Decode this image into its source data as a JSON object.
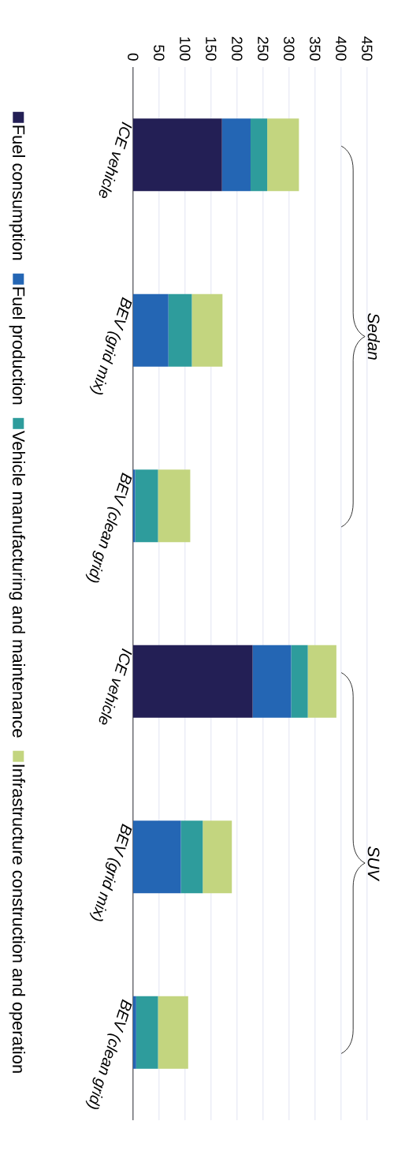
{
  "chart_data": {
    "type": "bar",
    "stacked": true,
    "orientation": "horizontal",
    "categories": [
      "ICE vehicle",
      "BEV (grid mix)",
      "BEV (clean grid)",
      "ICE vehicle",
      "BEV (grid mix)",
      "BEV (clean grid)"
    ],
    "series": [
      {
        "name": "Fuel consumption",
        "color": "#231f55",
        "values": [
          171,
          0,
          0,
          230,
          0,
          0
        ]
      },
      {
        "name": "Fuel production",
        "color": "#2466b4",
        "values": [
          55,
          68,
          4,
          74,
          92,
          6
        ]
      },
      {
        "name": "Vehicle manufacturing and maintenance",
        "color": "#2e9c9c",
        "values": [
          32,
          45,
          44,
          32,
          42,
          42
        ]
      },
      {
        "name": "Infrastructure construction and operation",
        "color": "#c3d57f",
        "values": [
          61,
          59,
          62,
          55,
          56,
          58
        ]
      }
    ],
    "xlim": [
      0,
      450
    ],
    "xticks": [
      0,
      50,
      100,
      150,
      200,
      250,
      300,
      350,
      400,
      450
    ],
    "grid": "x",
    "legend": "left",
    "annotations": [
      "Sedan",
      "SUV"
    ]
  }
}
